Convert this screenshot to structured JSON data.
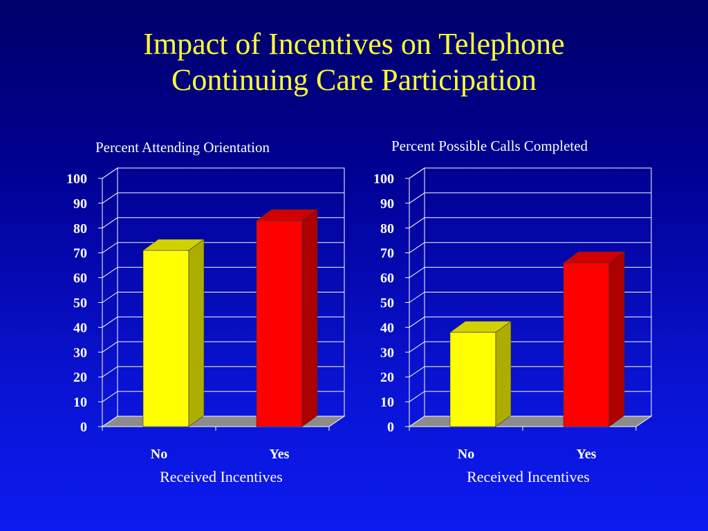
{
  "slide": {
    "title_line1": "Impact of Incentives on Telephone",
    "title_line2": "Continuing Care Participation"
  },
  "chart_data": [
    {
      "type": "bar",
      "title": "Percent Attending Orientation",
      "categories": [
        "No",
        "Yes"
      ],
      "values": [
        71,
        83
      ],
      "colors": [
        "#ffff00",
        "#ff0000"
      ],
      "xlabel": "Received  Incentives",
      "ylabel": "",
      "ylim": [
        0,
        100
      ],
      "yticks": [
        0,
        10,
        20,
        30,
        40,
        50,
        60,
        70,
        80,
        90,
        100
      ],
      "grid": true,
      "style": "3d"
    },
    {
      "type": "bar",
      "title": "Percent Possible Calls Completed",
      "categories": [
        "No",
        "Yes"
      ],
      "values": [
        38,
        66
      ],
      "colors": [
        "#ffff00",
        "#ff0000"
      ],
      "xlabel": "Received  Incentives",
      "ylabel": "",
      "ylim": [
        0,
        100
      ],
      "yticks": [
        0,
        10,
        20,
        30,
        40,
        50,
        60,
        70,
        80,
        90,
        100
      ],
      "grid": true,
      "style": "3d"
    }
  ]
}
